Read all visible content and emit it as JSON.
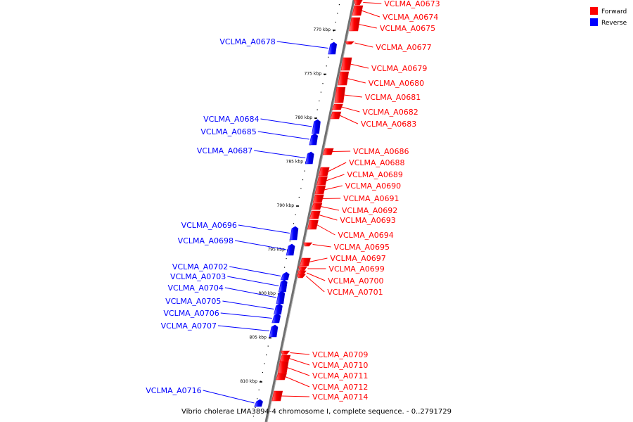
{
  "caption": "Vibrio cholerae LMA3894-4 chromosome I, complete sequence. - 0..2791729",
  "legend": [
    {
      "label": "Forward",
      "color": "#ff0000"
    },
    {
      "label": "Reverse",
      "color": "#0000ff"
    }
  ],
  "ticks": [
    "770 kbp",
    "775 kbp",
    "780 kbp",
    "785 kbp",
    "790 kbp",
    "795 kbp",
    "800 kbp",
    "805 kbp",
    "810 kbp"
  ],
  "genes": {
    "forward": [
      "VCLMA_A0673",
      "VCLMA_A0674",
      "VCLMA_A0675",
      "VCLMA_A0677",
      "VCLMA_A0679",
      "VCLMA_A0680",
      "VCLMA_A0681",
      "VCLMA_A0682",
      "VCLMA_A0683",
      "VCLMA_A0686",
      "VCLMA_A0688",
      "VCLMA_A0689",
      "VCLMA_A0690",
      "VCLMA_A0691",
      "VCLMA_A0692",
      "VCLMA_A0693",
      "VCLMA_A0694",
      "VCLMA_A0695",
      "VCLMA_A0697",
      "VCLMA_A0699",
      "VCLMA_A0700",
      "VCLMA_A0701",
      "VCLMA_A0709",
      "VCLMA_A0710",
      "VCLMA_A0711",
      "VCLMA_A0712",
      "VCLMA_A0714"
    ],
    "reverse": [
      "VCLMA_A0678",
      "VCLMA_A0684",
      "VCLMA_A0685",
      "VCLMA_A0687",
      "VCLMA_A0696",
      "VCLMA_A0698",
      "VCLMA_A0702",
      "VCLMA_A0703",
      "VCLMA_A0704",
      "VCLMA_A0705",
      "VCLMA_A0706",
      "VCLMA_A0707",
      "VCLMA_A0716"
    ]
  }
}
